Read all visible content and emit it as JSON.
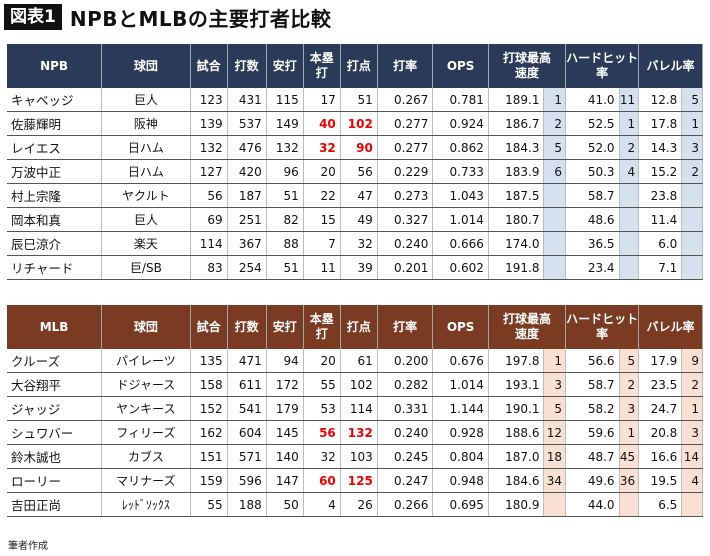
{
  "figure": {
    "label": "図表1",
    "title": "NPBとMLBの主要打者比較"
  },
  "npb": {
    "headers": [
      "NPB",
      "球団",
      "試合",
      "打数",
      "安打",
      "本塁打",
      "打点",
      "打率",
      "OPS",
      "打球最高速度",
      "ハードヒット率",
      "バレル率"
    ],
    "header_lines": {
      "hr": [
        "本塁",
        "打"
      ],
      "ev": [
        "打球最高",
        "速度"
      ],
      "hh": [
        "ハードヒット",
        "率"
      ]
    },
    "rows": [
      {
        "name": "キャベッジ",
        "team": "巨人",
        "g": "123",
        "ab": "431",
        "h": "115",
        "hr": "17",
        "rbi": "51",
        "avg": "0.267",
        "ops": "0.781",
        "ev": "189.1",
        "ev_rank": "1",
        "hh": "41.0",
        "hh_rank": "11",
        "brl": "12.8",
        "brl_rank": "5"
      },
      {
        "name": "佐藤輝明",
        "team": "阪神",
        "g": "139",
        "ab": "537",
        "h": "149",
        "hr": "40",
        "rbi": "102",
        "avg": "0.277",
        "ops": "0.924",
        "ev": "186.7",
        "ev_rank": "2",
        "hh": "52.5",
        "hh_rank": "1",
        "brl": "17.8",
        "brl_rank": "1"
      },
      {
        "name": "レイエス",
        "team": "日ハム",
        "g": "132",
        "ab": "476",
        "h": "132",
        "hr": "32",
        "rbi": "90",
        "avg": "0.277",
        "ops": "0.862",
        "ev": "184.3",
        "ev_rank": "5",
        "hh": "52.0",
        "hh_rank": "2",
        "brl": "14.3",
        "brl_rank": "3"
      },
      {
        "name": "万波中正",
        "team": "日ハム",
        "g": "127",
        "ab": "420",
        "h": "96",
        "hr": "20",
        "rbi": "56",
        "avg": "0.229",
        "ops": "0.733",
        "ev": "183.9",
        "ev_rank": "6",
        "hh": "50.3",
        "hh_rank": "4",
        "brl": "15.2",
        "brl_rank": "2"
      },
      {
        "name": "村上宗隆",
        "team": "ヤクルト",
        "g": "56",
        "ab": "187",
        "h": "51",
        "hr": "22",
        "rbi": "47",
        "avg": "0.273",
        "ops": "1.043",
        "ev": "187.5",
        "ev_rank": "",
        "hh": "58.7",
        "hh_rank": "",
        "brl": "23.8",
        "brl_rank": ""
      },
      {
        "name": "岡本和真",
        "team": "巨人",
        "g": "69",
        "ab": "251",
        "h": "82",
        "hr": "15",
        "rbi": "49",
        "avg": "0.327",
        "ops": "1.014",
        "ev": "180.7",
        "ev_rank": "",
        "hh": "48.6",
        "hh_rank": "",
        "brl": "11.4",
        "brl_rank": ""
      },
      {
        "name": "辰巳涼介",
        "team": "楽天",
        "g": "114",
        "ab": "367",
        "h": "88",
        "hr": "7",
        "rbi": "32",
        "avg": "0.240",
        "ops": "0.666",
        "ev": "174.0",
        "ev_rank": "",
        "hh": "36.5",
        "hh_rank": "",
        "brl": "6.0",
        "brl_rank": ""
      },
      {
        "name": "リチャード",
        "team": "巨/SB",
        "g": "83",
        "ab": "254",
        "h": "51",
        "hr": "11",
        "rbi": "39",
        "avg": "0.201",
        "ops": "0.602",
        "ev": "191.8",
        "ev_rank": "",
        "hh": "23.4",
        "hh_rank": "",
        "brl": "7.1",
        "brl_rank": ""
      }
    ]
  },
  "mlb": {
    "headers": [
      "MLB",
      "球団",
      "試合",
      "打数",
      "安打",
      "本塁打",
      "打点",
      "打率",
      "OPS",
      "打球最高速度",
      "ハードヒット率",
      "バレル率"
    ],
    "header_lines": {
      "hr": [
        "本塁",
        "打"
      ],
      "ev": [
        "打球最高",
        "速度"
      ],
      "hh": [
        "ハードヒット",
        "率"
      ]
    },
    "rows": [
      {
        "name": "クルーズ",
        "team": "パイレーツ",
        "g": "135",
        "ab": "471",
        "h": "94",
        "hr": "20",
        "rbi": "61",
        "avg": "0.200",
        "ops": "0.676",
        "ev": "197.8",
        "ev_rank": "1",
        "hh": "56.6",
        "hh_rank": "5",
        "brl": "17.9",
        "brl_rank": "9"
      },
      {
        "name": "大谷翔平",
        "team": "ドジャース",
        "g": "158",
        "ab": "611",
        "h": "172",
        "hr": "55",
        "rbi": "102",
        "avg": "0.282",
        "ops": "1.014",
        "ev": "193.1",
        "ev_rank": "3",
        "hh": "58.7",
        "hh_rank": "2",
        "brl": "23.5",
        "brl_rank": "2"
      },
      {
        "name": "ジャッジ",
        "team": "ヤンキース",
        "g": "152",
        "ab": "541",
        "h": "179",
        "hr": "53",
        "rbi": "114",
        "avg": "0.331",
        "ops": "1.144",
        "ev": "190.1",
        "ev_rank": "5",
        "hh": "58.2",
        "hh_rank": "3",
        "brl": "24.7",
        "brl_rank": "1"
      },
      {
        "name": "シュワバー",
        "team": "フィリーズ",
        "g": "162",
        "ab": "604",
        "h": "145",
        "hr": "56",
        "rbi": "132",
        "avg": "0.240",
        "ops": "0.928",
        "ev": "188.6",
        "ev_rank": "12",
        "hh": "59.6",
        "hh_rank": "1",
        "brl": "20.8",
        "brl_rank": "3"
      },
      {
        "name": "鈴木誠也",
        "team": "カブス",
        "g": "151",
        "ab": "571",
        "h": "140",
        "hr": "32",
        "rbi": "103",
        "avg": "0.245",
        "ops": "0.804",
        "ev": "187.0",
        "ev_rank": "18",
        "hh": "48.7",
        "hh_rank": "45",
        "brl": "16.6",
        "brl_rank": "14"
      },
      {
        "name": "ローリー",
        "team": "マリナーズ",
        "g": "159",
        "ab": "596",
        "h": "147",
        "hr": "60",
        "rbi": "125",
        "avg": "0.247",
        "ops": "0.948",
        "ev": "184.6",
        "ev_rank": "34",
        "hh": "49.6",
        "hh_rank": "36",
        "brl": "19.5",
        "brl_rank": "4"
      },
      {
        "name": "吉田正尚",
        "team": "ﾚｯﾄﾞｿｯｸｽ",
        "g": "55",
        "ab": "188",
        "h": "50",
        "hr": "4",
        "rbi": "26",
        "avg": "0.266",
        "ops": "0.695",
        "ev": "180.9",
        "ev_rank": "",
        "hh": "44.0",
        "hh_rank": "",
        "brl": "6.5",
        "brl_rank": ""
      }
    ]
  },
  "highlight_rows": {
    "npb": [
      1,
      2
    ],
    "mlb": [
      3,
      5
    ]
  },
  "colors": {
    "npb_header": "#2b3a58",
    "mlb_header": "#7a3b22",
    "highlight": "#e00000",
    "npb_rank_bg": "#d5e0ef",
    "mlb_rank_bg": "#f8e1d2"
  },
  "note": "筆者作成"
}
